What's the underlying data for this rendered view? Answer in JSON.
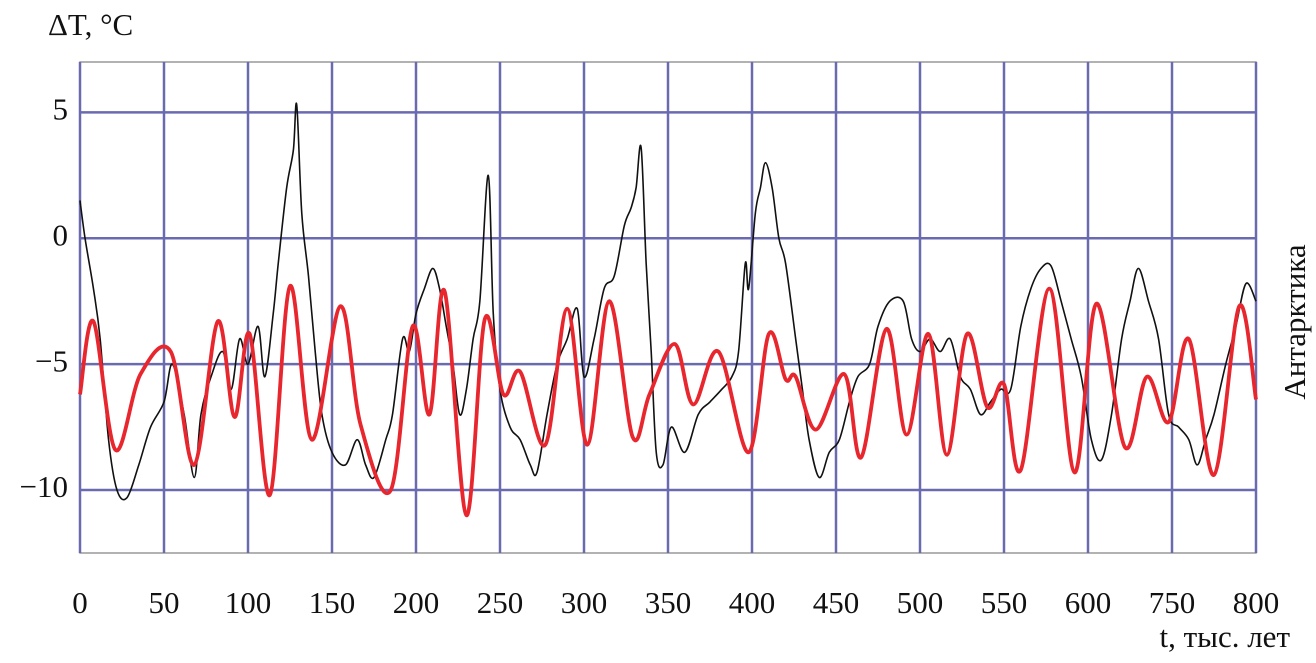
{
  "chart_data": {
    "type": "line",
    "y_label": "ΔT, °C",
    "x_label": "t, тыс. лет",
    "annotation": "Антарктика",
    "xlim": [
      0,
      700
    ],
    "xticks": [
      0,
      50,
      100,
      150,
      200,
      250,
      300,
      350,
      400,
      450,
      500,
      550,
      600,
      {
        "value": 650,
        "label": "750"
      },
      {
        "value": 700,
        "label": "800"
      }
    ],
    "ylim": [
      -12.5,
      7
    ],
    "yticks": [
      5,
      0,
      {
        "value": -5,
        "label": "−5"
      },
      {
        "value": -10,
        "label": "−10"
      }
    ],
    "grid": true,
    "series": [
      {
        "color": "#111111",
        "x": [
          0,
          3,
          8,
          12,
          17,
          22,
          28,
          35,
          42,
          50,
          55,
          62,
          68,
          72,
          78,
          85,
          90,
          95,
          100,
          106,
          110,
          115,
          118,
          123,
          127,
          129,
          132,
          136,
          140,
          144,
          150,
          158,
          165,
          170,
          175,
          182,
          186,
          192,
          196,
          200,
          205,
          210,
          214,
          218,
          222,
          226,
          230,
          234,
          238,
          243,
          246,
          250,
          256,
          262,
          268,
          272,
          278,
          284,
          290,
          296,
          300,
          306,
          312,
          318,
          324,
          328,
          331,
          334,
          337,
          340,
          343,
          347,
          352,
          360,
          368,
          375,
          382,
          388,
          392,
          396,
          398,
          402,
          405,
          408,
          412,
          416,
          420,
          426,
          430,
          434,
          440,
          446,
          452,
          458,
          463,
          470,
          475,
          482,
          490,
          495,
          500,
          506,
          512,
          518,
          524,
          530,
          536,
          542,
          548,
          554,
          560,
          566,
          572,
          578,
          584,
          590,
          596,
          602,
          608,
          614,
          620,
          625,
          630,
          636,
          642,
          648,
          654,
          660,
          665,
          670,
          675,
          682,
          688,
          694,
          700
        ],
        "values": [
          1.5,
          0,
          -2,
          -4,
          -8,
          -10,
          -10.3,
          -9,
          -7.5,
          -6.5,
          -5,
          -7,
          -9.5,
          -7,
          -5.5,
          -4.5,
          -6,
          -4,
          -5,
          -3.5,
          -5.5,
          -3,
          -1,
          2,
          3.5,
          5.3,
          1,
          -1.5,
          -4.5,
          -7,
          -8.5,
          -9,
          -8,
          -9,
          -9.5,
          -8,
          -7,
          -4,
          -4.5,
          -3,
          -2,
          -1.2,
          -2,
          -3.5,
          -5,
          -7,
          -6,
          -4,
          -2.5,
          2.5,
          -3,
          -6,
          -7.5,
          -8,
          -9,
          -9.3,
          -7,
          -5,
          -4,
          -2.8,
          -5.5,
          -4,
          -2,
          -1.5,
          0.5,
          1.2,
          2,
          3.6,
          -1,
          -4.5,
          -8.5,
          -9,
          -7.5,
          -8.5,
          -7,
          -6.5,
          -6,
          -5.5,
          -4.5,
          -1,
          -2,
          1,
          2,
          3,
          2,
          0,
          -1,
          -4,
          -6,
          -8,
          -9.5,
          -8.5,
          -8,
          -6.5,
          -5.5,
          -5,
          -3.5,
          -2.5,
          -2.5,
          -4,
          -4.5,
          -4,
          -4.5,
          -4,
          -5.5,
          -6,
          -7,
          -6.5,
          -6,
          -6,
          -3.5,
          -2,
          -1.2,
          -1.1,
          -2.5,
          -4,
          -5.5,
          -8,
          -8.8,
          -7,
          -4,
          -2.5,
          -1.2,
          -2.5,
          -4,
          -7,
          -7.5,
          -8,
          -9,
          -8,
          -7,
          -5,
          -3.5,
          -1.8,
          -2.5
        ]
      },
      {
        "color": "#e8262e",
        "x": [
          0,
          8,
          21,
          36,
          54,
          68,
          82,
          92,
          101,
          113,
          125,
          138,
          155,
          167,
          185,
          198,
          208,
          217,
          230,
          241,
          252,
          262,
          277,
          290,
          302,
          315,
          329,
          339,
          354,
          365,
          380,
          398,
          410,
          420,
          426,
          438,
          455,
          465,
          480,
          492,
          505,
          516,
          528,
          540,
          550,
          560,
          577,
          592,
          605,
          622,
          635,
          648,
          660,
          675,
          690,
          700
        ],
        "values": [
          -6.2,
          -3.3,
          -8.4,
          -5.4,
          -4.5,
          -9,
          -3.3,
          -7.1,
          -3.8,
          -10.2,
          -1.9,
          -8,
          -2.7,
          -7.4,
          -10,
          -3.5,
          -7,
          -2.1,
          -11,
          -3.2,
          -6.2,
          -5.3,
          -8.2,
          -2.8,
          -8.2,
          -2.5,
          -7.9,
          -6.2,
          -4.2,
          -6.6,
          -4.5,
          -8.5,
          -3.8,
          -5.6,
          -5.5,
          -7.6,
          -5.4,
          -8.7,
          -3.6,
          -7.8,
          -3.8,
          -8.6,
          -3.8,
          -6.7,
          -5.8,
          -9.2,
          -2,
          -9.3,
          -2.6,
          -8.3,
          -5.5,
          -7.3,
          -4,
          -9.4,
          -2.7,
          -6.4
        ]
      }
    ]
  }
}
